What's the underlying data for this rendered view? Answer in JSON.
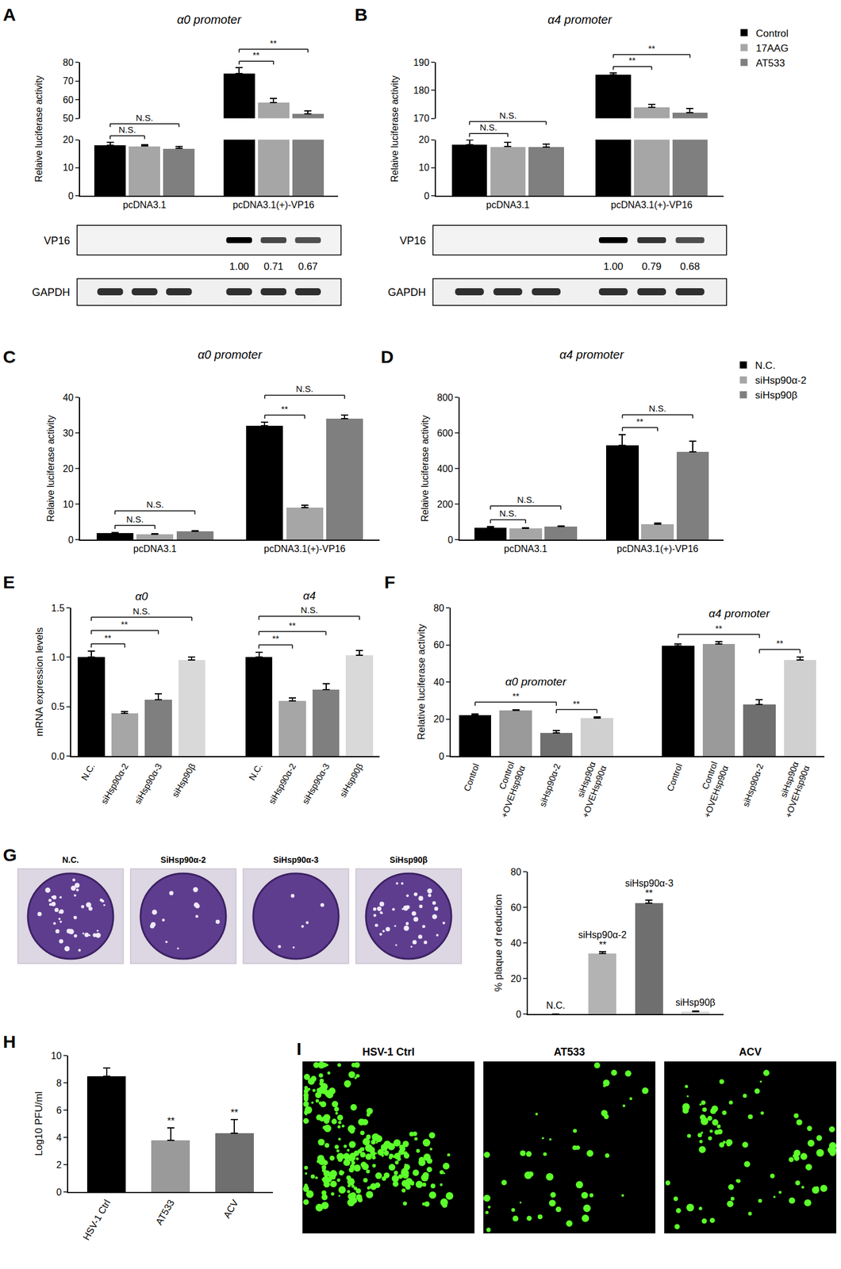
{
  "chart_data": [
    {
      "panel": "A",
      "type": "bar",
      "title": "α0 promoter",
      "y_label": "Relaive luciferase activity",
      "categories": [
        "pcDNA3.1",
        "pcDNA3.1(+)-VP16"
      ],
      "series": [
        {
          "name": "Control",
          "color": "#000000",
          "values": [
            18,
            74
          ],
          "errors": [
            1,
            3
          ]
        },
        {
          "name": "17AAG",
          "color": "#a6a6a6",
          "values": [
            17.7,
            58.5
          ],
          "errors": [
            0.6,
            2
          ]
        },
        {
          "name": "AT533",
          "color": "#7f7f7f",
          "values": [
            16.9,
            52.5
          ],
          "errors": [
            0.6,
            1.5
          ]
        }
      ],
      "ylim": [
        0,
        80
      ],
      "yticks": [
        0,
        10,
        20,
        50,
        60,
        70,
        80
      ],
      "y_break": [
        20,
        50
      ],
      "grid": false,
      "comparisons": [
        {
          "category": "pcDNA3.1",
          "from": "Control",
          "to": "17AAG",
          "text": "N.S."
        },
        {
          "category": "pcDNA3.1",
          "from": "Control",
          "to": "AT533",
          "text": "N.S."
        },
        {
          "category": "pcDNA3.1(+)-VP16",
          "from": "Control",
          "to": "17AAG",
          "text": "**"
        },
        {
          "category": "pcDNA3.1(+)-VP16",
          "from": "Control",
          "to": "AT533",
          "text": "**"
        }
      ],
      "blot": {
        "rows": [
          "VP16",
          "GAPDH"
        ],
        "category": "pcDNA3.1(+)-VP16",
        "values": [
          1,
          0.71,
          0.67
        ],
        "value_labels": [
          "1.00",
          "0.71",
          "0.67"
        ]
      }
    },
    {
      "panel": "B",
      "type": "bar",
      "title": "α4 promoter",
      "y_label": "Relaive luciferase activity",
      "categories": [
        "pcDNA3.1",
        "pcDNA3.1(+)-VP16"
      ],
      "series": [
        {
          "name": "Control",
          "color": "#000000",
          "values": [
            18.3,
            185.6
          ],
          "errors": [
            1.5,
            0.5
          ]
        },
        {
          "name": "17AAG",
          "color": "#a6a6a6",
          "values": [
            17.5,
            174
          ],
          "errors": [
            1.5,
            1
          ]
        },
        {
          "name": "AT533",
          "color": "#7f7f7f",
          "values": [
            17.4,
            172
          ],
          "errors": [
            1,
            1.5
          ]
        }
      ],
      "ylim": [
        0,
        190
      ],
      "yticks": [
        0,
        10,
        20,
        170,
        180,
        190
      ],
      "y_break": [
        20,
        170
      ],
      "grid": false,
      "legend": "right",
      "comparisons": [
        {
          "category": "pcDNA3.1",
          "from": "Control",
          "to": "17AAG",
          "text": "N.S."
        },
        {
          "category": "pcDNA3.1",
          "from": "Control",
          "to": "AT533",
          "text": "N.S."
        },
        {
          "category": "pcDNA3.1(+)-VP16",
          "from": "Control",
          "to": "17AAG",
          "text": "**"
        },
        {
          "category": "pcDNA3.1(+)-VP16",
          "from": "Control",
          "to": "AT533",
          "text": "**"
        }
      ],
      "blot": {
        "rows": [
          "VP16",
          "GAPDH"
        ],
        "category": "pcDNA3.1(+)-VP16",
        "values": [
          1,
          0.79,
          0.68
        ],
        "value_labels": [
          "1.00",
          "0.79",
          "0.68"
        ]
      }
    },
    {
      "panel": "C",
      "type": "bar",
      "title": "α0 promoter",
      "y_label": "Relaive luciferase activity",
      "categories": [
        "pcDNA3.1",
        "pcDNA3.1(+)-VP16"
      ],
      "series": [
        {
          "name": "N.C.",
          "color": "#000000",
          "values": [
            1.8,
            32
          ],
          "errors": [
            0.2,
            1
          ]
        },
        {
          "name": "siHsp90α-2",
          "color": "#a6a6a6",
          "values": [
            1.5,
            9
          ],
          "errors": [
            0.2,
            0.6
          ]
        },
        {
          "name": "siHsp90β",
          "color": "#7f7f7f",
          "values": [
            2.3,
            34
          ],
          "errors": [
            0.2,
            1
          ]
        }
      ],
      "ylim": [
        0,
        40
      ],
      "yticks": [
        0,
        10,
        20,
        30,
        40
      ],
      "grid": false,
      "comparisons": [
        {
          "category": "pcDNA3.1",
          "from": "N.C.",
          "to": "siHsp90α-2",
          "text": "N.S."
        },
        {
          "category": "pcDNA3.1",
          "from": "N.C.",
          "to": "siHsp90β",
          "text": "N.S."
        },
        {
          "category": "pcDNA3.1(+)-VP16",
          "from": "N.C.",
          "to": "siHsp90α-2",
          "text": "**"
        },
        {
          "category": "pcDNA3.1(+)-VP16",
          "from": "N.C.",
          "to": "siHsp90β",
          "text": "N.S."
        }
      ]
    },
    {
      "panel": "D",
      "type": "bar",
      "title": "α4 promoter",
      "y_label": "Relaive luciferase activity",
      "categories": [
        "pcDNA3.1",
        "pcDNA3.1(+)-VP16"
      ],
      "series": [
        {
          "name": "N.C.",
          "color": "#000000",
          "values": [
            68,
            530
          ],
          "errors": [
            4,
            60
          ]
        },
        {
          "name": "siHsp90α-2",
          "color": "#a6a6a6",
          "values": [
            65,
            88
          ],
          "errors": [
            3,
            5
          ]
        },
        {
          "name": "siHsp90β",
          "color": "#7f7f7f",
          "values": [
            72,
            495
          ],
          "errors": [
            5,
            60
          ]
        }
      ],
      "ylim": [
        0,
        800
      ],
      "yticks": [
        0,
        200,
        400,
        600,
        800
      ],
      "grid": false,
      "legend": "right",
      "comparisons": [
        {
          "category": "pcDNA3.1",
          "from": "N.C.",
          "to": "siHsp90α-2",
          "text": "N.S."
        },
        {
          "category": "pcDNA3.1",
          "from": "N.C.",
          "to": "siHsp90β",
          "text": "N.S."
        },
        {
          "category": "pcDNA3.1(+)-VP16",
          "from": "N.C.",
          "to": "siHsp90α-2",
          "text": "**"
        },
        {
          "category": "pcDNA3.1(+)-VP16",
          "from": "N.C.",
          "to": "siHsp90β",
          "text": "N.S."
        }
      ]
    },
    {
      "panel": "E",
      "type": "bar",
      "y_label": "mRNA expression levels",
      "categories": [
        "N.C.",
        "siHsp90α-2",
        "siHsp90α-3",
        "siHsp90β"
      ],
      "colors": [
        "#000000",
        "#a6a6a6",
        "#7f7f7f",
        "#d9d9d9"
      ],
      "series": [
        {
          "name": "α0",
          "values": [
            1,
            0.43,
            0.57,
            0.97
          ],
          "errors": [
            0.06,
            0.02,
            0.06,
            0.03
          ]
        },
        {
          "name": "α4",
          "values": [
            1,
            0.56,
            0.67,
            1.02
          ],
          "errors": [
            0.05,
            0.03,
            0.06,
            0.05
          ]
        }
      ],
      "ylim": [
        0,
        1.5
      ],
      "yticks": [
        {
          "value": 0,
          "label": "0.0"
        },
        0.5,
        {
          "value": 1,
          "label": "1.0"
        },
        1.5
      ],
      "grid": false,
      "comparisons": [
        {
          "series": "α0",
          "from": "N.C.",
          "to": "siHsp90α-2",
          "text": "**"
        },
        {
          "series": "α0",
          "from": "N.C.",
          "to": "siHsp90α-3",
          "text": "**"
        },
        {
          "series": "α0",
          "from": "N.C.",
          "to": "siHsp90β",
          "text": "N.S."
        },
        {
          "series": "α4",
          "from": "N.C.",
          "to": "siHsp90α-2",
          "text": "**"
        },
        {
          "series": "α4",
          "from": "N.C.",
          "to": "siHsp90α-3",
          "text": "**"
        },
        {
          "series": "α4",
          "from": "N.C.",
          "to": "siHsp90β",
          "text": "N.S."
        }
      ]
    },
    {
      "panel": "F",
      "type": "bar",
      "y_label": "Relative luciferase activity",
      "categories": [
        "Control",
        "Control +OVEHsp90α",
        "siHsp90α-2",
        "siHsp90α +OVEHsp90α"
      ],
      "colors": [
        "#000000",
        "#9a9a9a",
        "#6f6f6f",
        "#d0d0d0"
      ],
      "series": [
        {
          "name": "α0 promoter",
          "values": [
            22,
            24.5,
            12.5,
            20.5
          ],
          "errors": [
            0.6,
            0.6,
            1.2,
            0.6
          ]
        },
        {
          "name": "α4 promoter",
          "values": [
            59.5,
            60.5,
            28,
            52
          ],
          "errors": [
            1,
            1.2,
            2.5,
            1.5
          ]
        }
      ],
      "ylim": [
        0,
        80
      ],
      "yticks": [
        0,
        20,
        40,
        60,
        80
      ],
      "grid": false,
      "comparisons": [
        {
          "series": "α0 promoter",
          "from": "Control",
          "to": "siHsp90α-2",
          "text": "**"
        },
        {
          "series": "α0 promoter",
          "from": "siHsp90α-2",
          "to": "siHsp90α +OVEHsp90α",
          "text": "**"
        },
        {
          "series": "α4 promoter",
          "from": "Control",
          "to": "siHsp90α-2",
          "text": "**"
        },
        {
          "series": "α4 promoter",
          "from": "siHsp90α-2",
          "to": "siHsp90α +OVEHsp90α",
          "text": "**"
        }
      ]
    },
    {
      "panel": "G",
      "type": "bar",
      "y_label": "% plaque of reduction",
      "categories": [
        "N.C.",
        "siHsp90α-2",
        "siHsp90α-3",
        "siHsp90β"
      ],
      "values": [
        0,
        34,
        62.5,
        1.5
      ],
      "errors": [
        0,
        1,
        1.5,
        0.3
      ],
      "colors": [
        "#ffffff",
        "#b3b3b3",
        "#6f6f6f",
        "#d9d9d9"
      ],
      "ylim": [
        0,
        80
      ],
      "yticks": [
        0,
        20,
        40,
        60,
        80
      ],
      "grid": false,
      "tick_labels": "y",
      "markers": [
        {
          "category": "siHsp90α-2",
          "text": "**"
        },
        {
          "category": "siHsp90α-3",
          "text": "**"
        }
      ],
      "images": [
        "N.C.",
        "SiHsp90α-2",
        "SiHsp90α-3",
        "SiHsp90β"
      ]
    },
    {
      "panel": "H",
      "type": "bar",
      "y_label": "Log10 PFU/ml",
      "categories": [
        "HSV-1 Ctrl",
        "AT533",
        "ACV"
      ],
      "values": [
        8.5,
        3.8,
        4.3
      ],
      "errors": [
        0.6,
        0.9,
        1.0
      ],
      "colors": [
        "#000000",
        "#9a9a9a",
        "#6f6f6f"
      ],
      "ylim": [
        0,
        10
      ],
      "yticks": [
        0,
        2,
        4,
        6,
        8,
        10
      ],
      "grid": false,
      "markers": [
        {
          "category": "AT533",
          "text": "**"
        },
        {
          "category": "ACV",
          "text": "**"
        }
      ]
    }
  ],
  "image_panels": [
    {
      "panel": "I",
      "labels": [
        "HSV-1 Ctrl",
        "AT533",
        "ACV"
      ]
    }
  ]
}
